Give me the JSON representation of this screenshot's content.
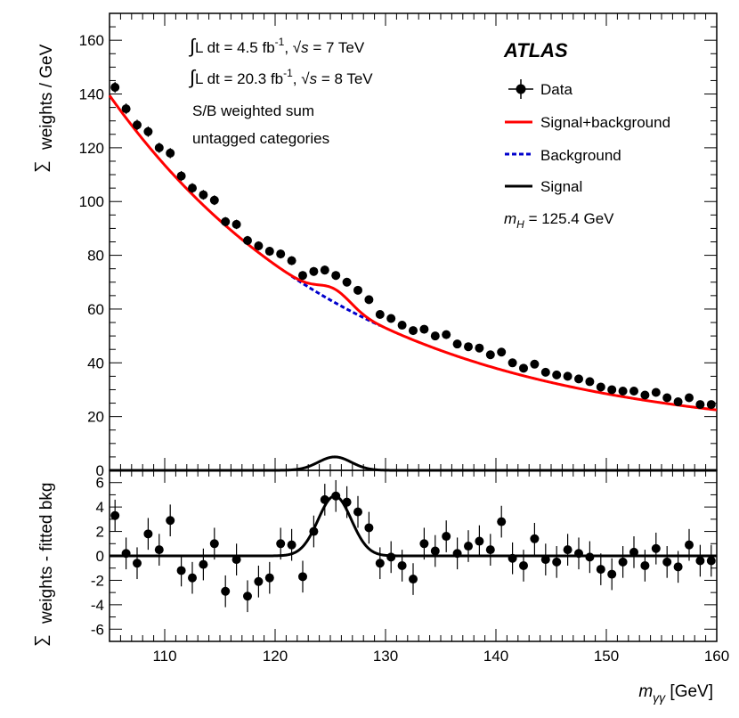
{
  "chart_data": [
    {
      "type": "scatter",
      "panel": "top",
      "xlim": [
        105,
        160
      ],
      "ylim": [
        0,
        170
      ],
      "ylabel_symbol": "∑",
      "ylabel": "weights / GeV",
      "yticks": [
        0,
        20,
        40,
        60,
        80,
        100,
        120,
        140,
        160
      ],
      "grid": false,
      "annotations": [
        {
          "pre": "∫",
          "main": "L dt = 4.5 fb",
          "sup": "-1",
          "post": ", ",
          "sqrt": "√",
          "s": "s",
          "tail": " = 7 TeV"
        },
        {
          "pre": "∫",
          "main": "L dt = 20.3 fb",
          "sup": "-1",
          "post": ", ",
          "sqrt": "√",
          "s": "s",
          "tail": " = 8 TeV"
        },
        {
          "text": "S/B weighted sum"
        },
        {
          "text": "untagged categories"
        }
      ],
      "experiment": "ATLAS",
      "mass_label": {
        "m": "m",
        "sub": "H",
        "rest": " = 125.4 GeV"
      },
      "legend_position": "top-right",
      "legend": [
        {
          "name": "Data",
          "style": "marker",
          "color": "#000000"
        },
        {
          "name": "Signal+background",
          "style": "solid",
          "color": "#ff0000"
        },
        {
          "name": "Background",
          "style": "dashed",
          "color": "#0000cc"
        },
        {
          "name": "Signal",
          "style": "solid",
          "color": "#000000"
        }
      ],
      "series": [
        {
          "name": "Data",
          "x": [
            105.5,
            106.5,
            107.5,
            108.5,
            109.5,
            110.5,
            111.5,
            112.5,
            113.5,
            114.5,
            115.5,
            116.5,
            117.5,
            118.5,
            119.5,
            120.5,
            121.5,
            122.5,
            123.5,
            124.5,
            125.5,
            126.5,
            127.5,
            128.5,
            129.5,
            130.5,
            131.5,
            132.5,
            133.5,
            134.5,
            135.5,
            136.5,
            137.5,
            138.5,
            139.5,
            140.5,
            141.5,
            142.5,
            143.5,
            144.5,
            145.5,
            146.5,
            147.5,
            148.5,
            149.5,
            150.5,
            151.5,
            152.5,
            153.5,
            154.5,
            155.5,
            156.5,
            157.5,
            158.5,
            159.5
          ],
          "y": [
            142.5,
            134.5,
            128.5,
            126.0,
            120.0,
            118.0,
            109.5,
            105.0,
            102.5,
            100.5,
            92.5,
            91.5,
            85.5,
            83.5,
            81.5,
            80.5,
            78.0,
            72.5,
            74.0,
            74.5,
            72.5,
            70.0,
            67.0,
            63.5,
            58.0,
            56.5,
            54.0,
            52.0,
            52.5,
            50.0,
            50.5,
            47.0,
            46.0,
            45.5,
            43.0,
            44.0,
            40.0,
            38.0,
            39.5,
            36.5,
            35.5,
            35.0,
            34.0,
            33.0,
            31.0,
            30.0,
            29.5,
            29.5,
            28.0,
            29.0,
            27.0,
            25.5,
            27.0,
            24.5,
            24.5
          ]
        }
      ],
      "curves": {
        "background": {
          "name": "Background",
          "color": "#0000cc"
        },
        "signal_plus_background": {
          "name": "Signal+background",
          "color": "#ff0000"
        },
        "signal": {
          "name": "Signal",
          "color": "#000000",
          "peak": 125.4,
          "amplitude": 5.0,
          "sigma": 1.5
        }
      }
    },
    {
      "type": "scatter",
      "panel": "bottom",
      "xlim": [
        105,
        160
      ],
      "ylim": [
        -7,
        7
      ],
      "xlabel_symbol": "m",
      "xlabel_sub": "γγ",
      "xlabel_unit": " [GeV]",
      "ylabel_symbol": "∑",
      "ylabel": "weights - fitted bkg",
      "xticks": [
        110,
        120,
        130,
        140,
        150,
        160
      ],
      "yticks": [
        -6,
        -4,
        -2,
        0,
        2,
        4,
        6
      ],
      "grid": false,
      "series": [
        {
          "name": "Data",
          "x": [
            105.5,
            106.5,
            107.5,
            108.5,
            109.5,
            110.5,
            111.5,
            112.5,
            113.5,
            114.5,
            115.5,
            116.5,
            117.5,
            118.5,
            119.5,
            120.5,
            121.5,
            122.5,
            123.5,
            124.5,
            125.5,
            126.5,
            127.5,
            128.5,
            129.5,
            130.5,
            131.5,
            132.5,
            133.5,
            134.5,
            135.5,
            136.5,
            137.5,
            138.5,
            139.5,
            140.5,
            141.5,
            142.5,
            143.5,
            144.5,
            145.5,
            146.5,
            147.5,
            148.5,
            149.5,
            150.5,
            151.5,
            152.5,
            153.5,
            154.5,
            155.5,
            156.5,
            157.5,
            158.5,
            159.5
          ],
          "y": [
            3.3,
            0.2,
            -0.6,
            1.8,
            0.5,
            2.9,
            -1.2,
            -1.8,
            -0.7,
            1.0,
            -2.9,
            -0.3,
            -3.3,
            -2.1,
            -1.8,
            1.0,
            0.9,
            -1.7,
            2.0,
            4.6,
            4.9,
            4.4,
            3.6,
            2.3,
            -0.6,
            -0.1,
            -0.8,
            -1.9,
            1.0,
            0.4,
            1.6,
            0.2,
            0.8,
            1.2,
            0.5,
            2.8,
            -0.2,
            -0.8,
            1.4,
            -0.3,
            -0.5,
            0.5,
            0.2,
            -0.1,
            -1.1,
            -1.5,
            -0.5,
            0.3,
            -0.8,
            0.6,
            -0.5,
            -0.9,
            0.9,
            -0.4,
            -0.4
          ],
          "errors": [
            1.3,
            1.3,
            1.3,
            1.3,
            1.3,
            1.3,
            1.3,
            1.3,
            1.3,
            1.3,
            1.3,
            1.3,
            1.3,
            1.3,
            1.3,
            1.3,
            1.3,
            1.3,
            1.3,
            1.3,
            1.3,
            1.3,
            1.3,
            1.3,
            1.3,
            1.3,
            1.3,
            1.3,
            1.3,
            1.3,
            1.3,
            1.3,
            1.3,
            1.3,
            1.3,
            1.3,
            1.3,
            1.3,
            1.3,
            1.3,
            1.3,
            1.3,
            1.3,
            1.3,
            1.3,
            1.3,
            1.3,
            1.3,
            1.3,
            1.3,
            1.3,
            1.3,
            1.3,
            1.3,
            1.3
          ]
        }
      ],
      "curves": {
        "signal": {
          "name": "Signal",
          "color": "#000000",
          "peak": 125.4,
          "amplitude": 4.9,
          "sigma": 1.5
        }
      }
    }
  ]
}
